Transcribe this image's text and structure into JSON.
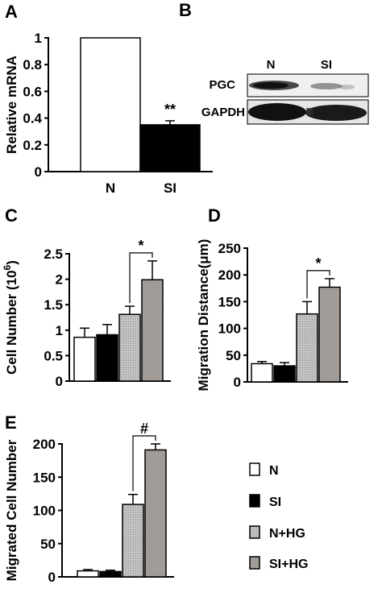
{
  "colors": {
    "N": "#ffffff",
    "SI": "#000000",
    "N+HG": "#b4b4b4",
    "SI+HG": "#a09a96",
    "axis": "#000000"
  },
  "legend": {
    "items": [
      {
        "label": "N",
        "color_key": "N"
      },
      {
        "label": "SI",
        "color_key": "SI"
      },
      {
        "label": "N+HG",
        "color_key": "N+HG"
      },
      {
        "label": "SI+HG",
        "color_key": "SI+HG"
      }
    ]
  },
  "western_blot": {
    "letter": "B",
    "lane_labels": [
      "N",
      "SI"
    ],
    "rows": [
      "PGC",
      "GAPDH"
    ]
  },
  "chart_data": [
    {
      "id": "A",
      "letter": "A",
      "type": "bar",
      "ylabel": "Relative mRNA",
      "xlabel": "",
      "ylim": [
        0,
        1
      ],
      "yticks": [
        "0",
        "0.2",
        "0.4",
        "0.6",
        "0.8",
        "1"
      ],
      "categories": [
        "N",
        "SI"
      ],
      "show_category_labels": true,
      "values": [
        1.0,
        0.35
      ],
      "errors": [
        0,
        0.03
      ],
      "groups": [
        "N",
        "SI"
      ],
      "annotations": [
        {
          "text": "**",
          "bar": 1
        }
      ]
    },
    {
      "id": "C",
      "letter": "C",
      "type": "bar",
      "ylabel": "Cell Number (10",
      "ylabel_sup": "6",
      "ylabel_tail": ")",
      "xlabel": "",
      "ylim": [
        0,
        2.5
      ],
      "yticks": [
        "0",
        "0.5",
        "1",
        "1.5",
        "2",
        "2.5"
      ],
      "categories": [
        "N",
        "SI",
        "N+HG",
        "SI+HG"
      ],
      "show_category_labels": false,
      "values": [
        0.86,
        0.91,
        1.31,
        1.99
      ],
      "errors": [
        0.18,
        0.2,
        0.16,
        0.37
      ],
      "groups": [
        "N",
        "SI",
        "N+HG",
        "SI+HG"
      ],
      "annotations": [
        {
          "text": "*",
          "from": 2,
          "to": 3
        }
      ]
    },
    {
      "id": "D",
      "letter": "D",
      "type": "bar",
      "ylabel": "Migration Distance(μm)",
      "xlabel": "",
      "ylim": [
        0,
        250
      ],
      "yticks": [
        "0",
        "50",
        "100",
        "150",
        "200",
        "250"
      ],
      "categories": [
        "N",
        "SI",
        "N+HG",
        "SI+HG"
      ],
      "show_category_labels": false,
      "values": [
        34,
        30,
        127,
        177
      ],
      "errors": [
        4,
        6,
        23,
        16
      ],
      "groups": [
        "N",
        "SI",
        "N+HG",
        "SI+HG"
      ],
      "annotations": [
        {
          "text": "*",
          "from": 2,
          "to": 3
        }
      ]
    },
    {
      "id": "E",
      "letter": "E",
      "type": "bar",
      "ylabel": "Migrated Cell Number",
      "xlabel": "",
      "ylim": [
        0,
        200
      ],
      "yticks": [
        "0",
        "50",
        "100",
        "150",
        "200"
      ],
      "categories": [
        "N",
        "SI",
        "N+HG",
        "SI+HG"
      ],
      "show_category_labels": false,
      "values": [
        9,
        8,
        109,
        191
      ],
      "errors": [
        2,
        2,
        15,
        9
      ],
      "groups": [
        "N",
        "SI",
        "N+HG",
        "SI+HG"
      ],
      "annotations": [
        {
          "text": "#",
          "from": 2,
          "to": 3
        }
      ]
    }
  ]
}
